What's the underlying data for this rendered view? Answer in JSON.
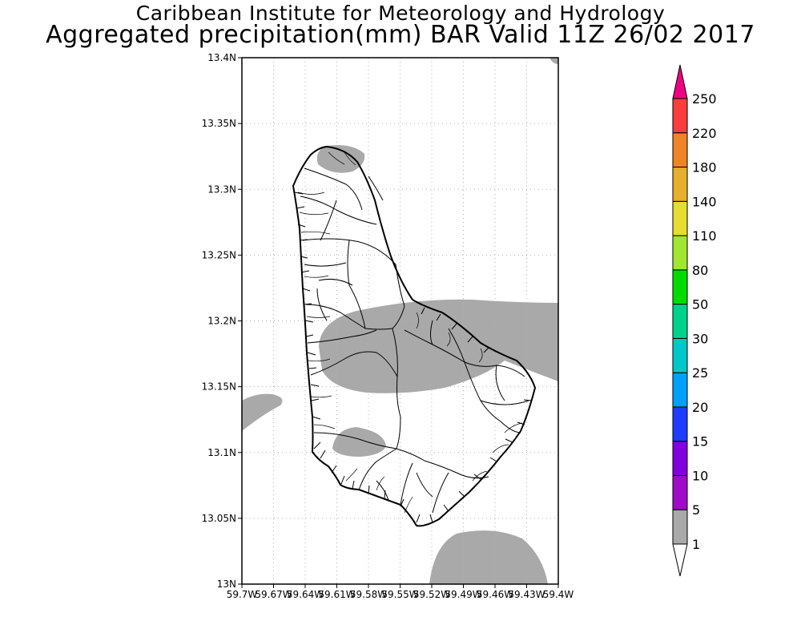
{
  "title": {
    "line1": "Caribbean Institute for Meteorology and Hydrology",
    "line2": "Aggregated precipitation(mm) BAR Valid 11Z 26/02 2017"
  },
  "map": {
    "lat_range": [
      13.0,
      13.4
    ],
    "lon_range": [
      -59.7,
      -59.4
    ],
    "lat_ticks": [
      {
        "value": 13.4,
        "label": "13.4N"
      },
      {
        "value": 13.35,
        "label": "13.35N"
      },
      {
        "value": 13.3,
        "label": "13.3N"
      },
      {
        "value": 13.25,
        "label": "13.25N"
      },
      {
        "value": 13.2,
        "label": "13.2N"
      },
      {
        "value": 13.15,
        "label": "13.15N"
      },
      {
        "value": 13.1,
        "label": "13.1N"
      },
      {
        "value": 13.05,
        "label": "13.05N"
      },
      {
        "value": 13.0,
        "label": "13N"
      }
    ],
    "lon_ticks": [
      {
        "value": -59.7,
        "label": "59.7W"
      },
      {
        "value": -59.67,
        "label": "59.67W"
      },
      {
        "value": -59.64,
        "label": "59.64W"
      },
      {
        "value": -59.61,
        "label": "59.61W"
      },
      {
        "value": -59.58,
        "label": "59.58W"
      },
      {
        "value": -59.55,
        "label": "59.55W"
      },
      {
        "value": -59.52,
        "label": "59.52W"
      },
      {
        "value": -59.49,
        "label": "59.49W"
      },
      {
        "value": -59.46,
        "label": "59.46W"
      },
      {
        "value": -59.43,
        "label": "59.43W"
      },
      {
        "value": -59.4,
        "label": "59.4W"
      }
    ],
    "grid": true
  },
  "colorbar": {
    "levels": [
      "1",
      "5",
      "10",
      "15",
      "20",
      "25",
      "30",
      "50",
      "80",
      "110",
      "140",
      "180",
      "220",
      "250"
    ],
    "colors": [
      "#ffffff",
      "#a9a9a9",
      "#a00ac8",
      "#8200dc",
      "#1e3cff",
      "#00a0ff",
      "#00c8c8",
      "#00d28c",
      "#00dc00",
      "#a0e632",
      "#e6dc32",
      "#e6af2d",
      "#f08228",
      "#fa3c3c",
      "#f00082"
    ]
  },
  "precip_color": "#a9a9a9"
}
